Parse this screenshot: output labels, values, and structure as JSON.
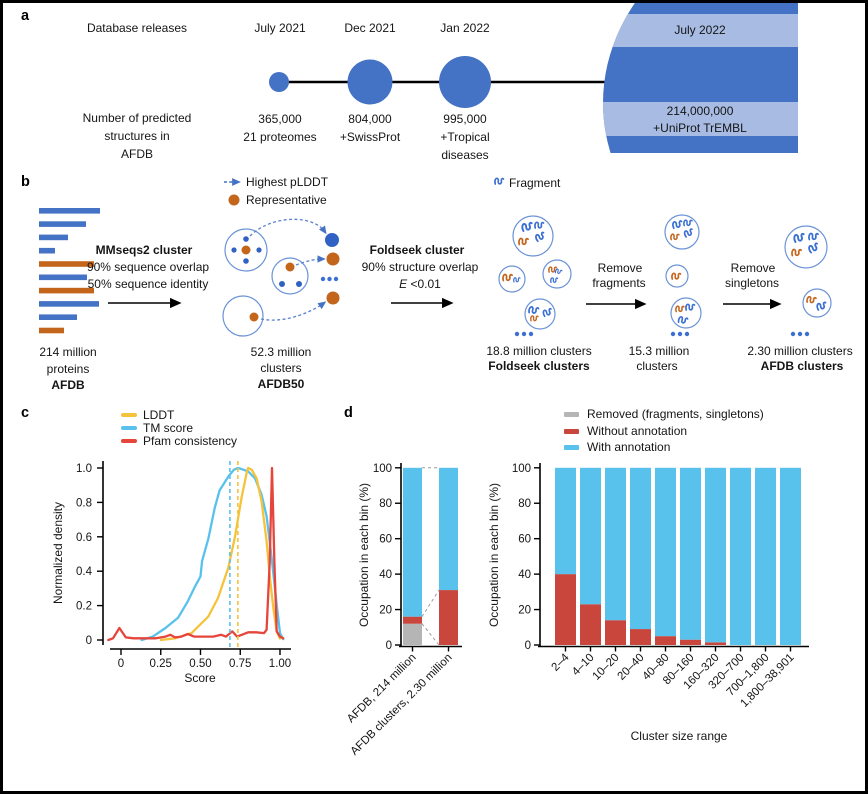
{
  "a": {
    "label": "a",
    "releases_label": "Database releases",
    "count_label_lines": [
      "Number of predicted",
      "structures in",
      "AFDB"
    ],
    "dates": [
      "July 2021",
      "Dec 2021",
      "Jan 2022",
      "July 2022"
    ],
    "counts": [
      [
        "365,000",
        "21 proteomes"
      ],
      [
        "804,000",
        "+SwissProt"
      ],
      [
        "995,000",
        "+Tropical",
        "diseases"
      ],
      [
        "214,000,000",
        "+UniProt TrEMBL"
      ]
    ]
  },
  "b": {
    "label": "b",
    "legend": {
      "highest_plddt": "Highest pLDDT",
      "representative": "Representative",
      "fragment": "Fragment"
    },
    "afdb": {
      "count": "214 million",
      "unit": "proteins",
      "name": "AFDB"
    },
    "mmseqs": {
      "title": "MMseqs2 cluster",
      "line1": "90% sequence overlap",
      "line2": "50% sequence identity"
    },
    "afdb50": {
      "count": "52.3 million",
      "unit": "clusters",
      "name": "AFDB50"
    },
    "foldseek": {
      "title": "Foldseek cluster",
      "line1": "90% structure overlap",
      "e_symbol": "E",
      "e_rest": " <0.01"
    },
    "foldseek_clusters": {
      "count": "18.8 million clusters",
      "name": "Foldseek clusters"
    },
    "remove_fragments": [
      "Remove",
      "fragments"
    ],
    "mid": {
      "count": "15.3 million",
      "unit": "clusters"
    },
    "remove_singletons": [
      "Remove",
      "singletons"
    ],
    "final": {
      "count": "2.30 million clusters",
      "name": "AFDB clusters"
    }
  },
  "c": {
    "label": "c"
  },
  "d": {
    "label": "d",
    "legend": [
      {
        "label": "Removed (fragments, singletons)",
        "color": "#b5b5b5"
      },
      {
        "label": "Without annotation",
        "color": "#c9463d"
      },
      {
        "label": "With annotation",
        "color": "#58c1ec"
      }
    ]
  },
  "colors": {
    "royal_blue": "#4472c4",
    "light_blue": "#a7bbe3",
    "orange": "#c4651c",
    "bubble_stroke": "#6b93d6",
    "ellipsis_blue": "#3b6fd1",
    "cyan": "#58c1ec",
    "yellow": "#f5c33b",
    "bright_red": "#e6453c",
    "bar_red": "#c9463d",
    "gray": "#b5b5b5"
  },
  "chart_data": [
    {
      "id": "density",
      "type": "line",
      "xlabel": "Score",
      "ylabel": "Normalized density",
      "xlim": [
        -0.1,
        1.05
      ],
      "ylim": [
        0,
        1.02
      ],
      "xticks": [
        0,
        0.25,
        0.5,
        0.75,
        1.0
      ],
      "xtick_labels": [
        "0",
        "0.25",
        "0.50",
        "0.75",
        "1.00"
      ],
      "yticks": [
        0,
        0.2,
        0.4,
        0.6,
        0.8,
        1.0
      ],
      "ytick_labels": [
        "0",
        "0.2",
        "0.4",
        "0.6",
        "0.8",
        "1.0"
      ],
      "grid": false,
      "legend_position": "top-left",
      "legend": [
        {
          "label": "LDDT",
          "color": "#f5c33b"
        },
        {
          "label": "TM score",
          "color": "#58c1ec"
        },
        {
          "label": "Pfam consistency",
          "color": "#e6453c"
        }
      ],
      "series": [
        {
          "name": "TM score",
          "color": "#58c1ec",
          "x": [
            0.13,
            0.2,
            0.28,
            0.36,
            0.42,
            0.465,
            0.5,
            0.51,
            0.55,
            0.59,
            0.62,
            0.675,
            0.71,
            0.737,
            0.77,
            0.8,
            0.843,
            0.884,
            0.916,
            0.947,
            0.979,
            1.0,
            1.02
          ],
          "y": [
            0,
            0.02,
            0.07,
            0.13,
            0.225,
            0.31,
            0.37,
            0.46,
            0.59,
            0.77,
            0.87,
            0.95,
            0.99,
            1.0,
            0.99,
            0.98,
            0.94,
            0.845,
            0.72,
            0.48,
            0.205,
            0.04,
            0.005
          ]
        },
        {
          "name": "LDDT",
          "color": "#f5c33b",
          "x": [
            0.25,
            0.34,
            0.444,
            0.55,
            0.61,
            0.675,
            0.717,
            0.758,
            0.79,
            0.8,
            0.822,
            0.853,
            0.884,
            0.916,
            0.937,
            0.958,
            0.979,
            1.0
          ],
          "y": [
            0,
            0.01,
            0.04,
            0.137,
            0.244,
            0.42,
            0.6,
            0.826,
            0.97,
            1.0,
            0.99,
            0.94,
            0.806,
            0.574,
            0.36,
            0.186,
            0.05,
            0.008
          ]
        },
        {
          "name": "Pfam consistency",
          "color": "#e6453c",
          "x": [
            -0.08,
            -0.05,
            -0.01,
            0.03,
            0.08,
            0.15,
            0.22,
            0.28,
            0.31,
            0.34,
            0.38,
            0.42,
            0.46,
            0.52,
            0.58,
            0.63,
            0.66,
            0.7,
            0.73,
            0.76,
            0.8,
            0.85,
            0.9,
            0.916,
            0.935,
            0.95,
            0.965,
            0.979,
            1.0,
            1.02
          ],
          "y": [
            0,
            0.01,
            0.07,
            0.015,
            0.01,
            0.01,
            0.01,
            0.02,
            0.03,
            0.015,
            0.02,
            0.035,
            0.02,
            0.02,
            0.02,
            0.03,
            0.02,
            0.05,
            0.02,
            0.03,
            0.045,
            0.045,
            0.04,
            0.06,
            0.45,
            1.0,
            0.45,
            0.05,
            0.02,
            0.01
          ]
        }
      ],
      "vlines": [
        {
          "x": 0.685,
          "color": "#58c1ec",
          "style": "dashed"
        },
        {
          "x": 0.735,
          "color": "#f5c33b",
          "style": "dashed"
        }
      ]
    },
    {
      "id": "occupation_overview",
      "type": "stacked_bar",
      "xlabel": "",
      "ylabel": "Occupation in each bin (%)",
      "ylim": [
        0,
        100
      ],
      "yticks": [
        0,
        20,
        40,
        60,
        80,
        100
      ],
      "categories": [
        "AFDB, 214 million",
        "AFDB clusters, 2.30 million"
      ],
      "series": [
        {
          "name": "Removed (fragments, singletons)",
          "color": "#b5b5b5",
          "values": [
            12,
            0
          ]
        },
        {
          "name": "Without annotation",
          "color": "#c9463d",
          "values": [
            4,
            31
          ]
        },
        {
          "name": "With annotation",
          "color": "#58c1ec",
          "values": [
            84,
            69
          ]
        }
      ]
    },
    {
      "id": "occupation_by_size",
      "type": "stacked_bar",
      "xlabel": "Cluster size range",
      "ylabel": "Occupation in each bin (%)",
      "ylim": [
        0,
        100
      ],
      "yticks": [
        0,
        20,
        40,
        60,
        80,
        100
      ],
      "categories": [
        "2–4",
        "4–10",
        "10–20",
        "20–40",
        "40–80",
        "80–160",
        "160–320",
        "320–700",
        "700–1,800",
        "1,800–38,901"
      ],
      "series": [
        {
          "name": "Without annotation",
          "color": "#c9463d",
          "values": [
            40,
            23,
            14,
            9,
            5,
            3,
            1.5,
            0,
            0,
            0
          ]
        },
        {
          "name": "With annotation",
          "color": "#58c1ec",
          "values": [
            60,
            77,
            86,
            91,
            95,
            97,
            98.5,
            100,
            100,
            100
          ]
        }
      ]
    }
  ]
}
